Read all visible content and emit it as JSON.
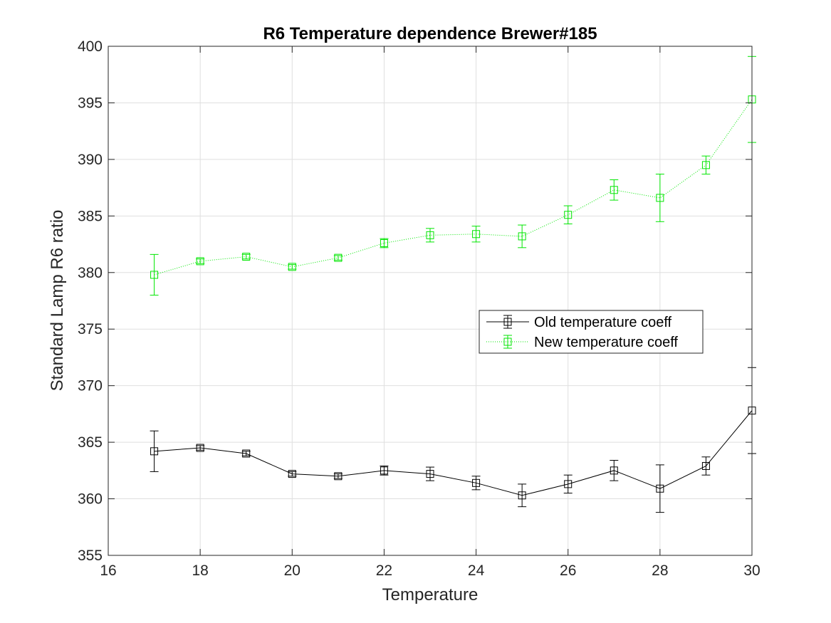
{
  "chart_data": {
    "type": "line",
    "title": "R6 Temperature dependence Brewer#185",
    "xlabel": "Temperature",
    "ylabel": "Standard Lamp R6 ratio",
    "xlim": [
      16,
      30
    ],
    "ylim": [
      355,
      400
    ],
    "xticks": [
      16,
      18,
      20,
      22,
      24,
      26,
      28,
      30
    ],
    "yticks": [
      355,
      360,
      365,
      370,
      375,
      380,
      385,
      390,
      395,
      400
    ],
    "grid": true,
    "legend_position": "center-right",
    "x": [
      17,
      18,
      19,
      20,
      21,
      22,
      23,
      24,
      25,
      26,
      27,
      28,
      29,
      30
    ],
    "series": [
      {
        "name": "Old temperature coeff",
        "color": "#000000",
        "line_style": "solid",
        "marker": "square",
        "values": [
          364.2,
          364.5,
          364.0,
          362.2,
          362.0,
          362.5,
          362.2,
          361.4,
          360.3,
          361.3,
          362.5,
          360.9,
          362.9,
          367.8
        ],
        "errors": [
          1.8,
          0.2,
          0.2,
          0.2,
          0.2,
          0.4,
          0.6,
          0.6,
          1.0,
          0.8,
          0.9,
          2.1,
          0.8,
          3.8
        ]
      },
      {
        "name": "New temperature coeff",
        "color": "#00e600",
        "line_style": "dotted",
        "marker": "square",
        "values": [
          379.8,
          381.0,
          381.4,
          380.5,
          381.3,
          382.6,
          383.3,
          383.4,
          383.2,
          385.1,
          387.3,
          386.6,
          389.5,
          395.3
        ],
        "errors": [
          1.8,
          0.2,
          0.2,
          0.2,
          0.2,
          0.4,
          0.6,
          0.7,
          1.0,
          0.8,
          0.9,
          2.1,
          0.8,
          3.8
        ]
      }
    ]
  }
}
